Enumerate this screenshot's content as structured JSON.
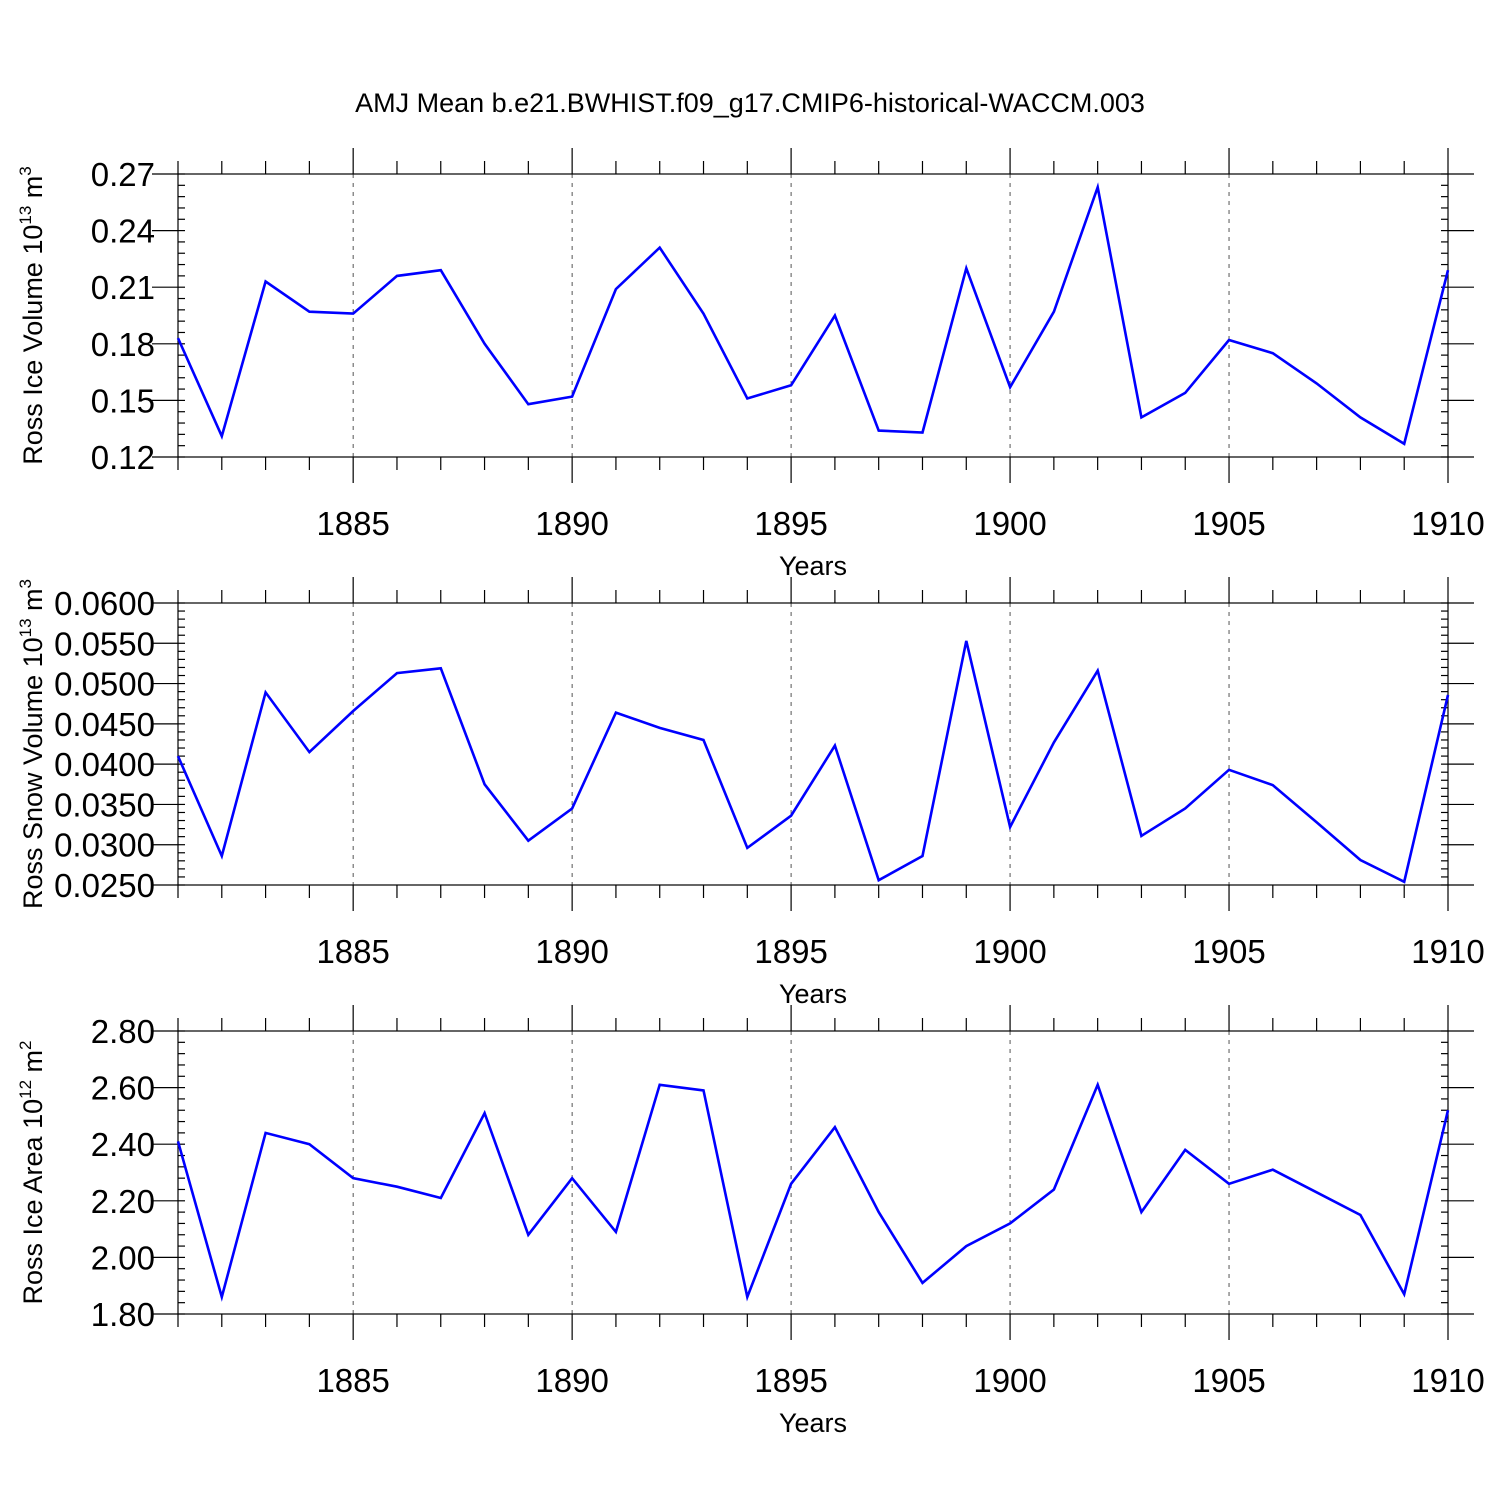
{
  "title": "AMJ Mean b.e21.BWHIST.f09_g17.CMIP6-historical-WACCM.003",
  "colors": {
    "line": "#0000ff",
    "axis": "#000000",
    "grid": "#555555"
  },
  "chart_data": [
    {
      "type": "line",
      "xlabel": "Years",
      "ylabel": "Ross Ice Volume 10",
      "ylabel_exp": "13",
      "ylabel_unit": "m",
      "ylabel_unit_exp": "3",
      "xlim": [
        1881,
        1910
      ],
      "ylim": [
        0.12,
        0.27
      ],
      "x_ticks": [
        1885,
        1890,
        1895,
        1900,
        1905,
        1910
      ],
      "y_ticks": [
        0.12,
        0.15,
        0.18,
        0.21,
        0.24,
        0.27
      ],
      "y_tick_labels": [
        "0.12",
        "0.15",
        "0.18",
        "0.21",
        "0.24",
        "0.27"
      ],
      "grid": "vertical dashed at major x ticks",
      "x": [
        1881,
        1882,
        1883,
        1884,
        1885,
        1886,
        1887,
        1888,
        1889,
        1890,
        1891,
        1892,
        1893,
        1894,
        1895,
        1896,
        1897,
        1898,
        1899,
        1900,
        1901,
        1902,
        1903,
        1904,
        1905,
        1906,
        1907,
        1908,
        1909,
        1910
      ],
      "values": [
        0.183,
        0.131,
        0.213,
        0.197,
        0.196,
        0.216,
        0.219,
        0.18,
        0.148,
        0.152,
        0.209,
        0.231,
        0.196,
        0.151,
        0.158,
        0.195,
        0.134,
        0.133,
        0.22,
        0.157,
        0.197,
        0.263,
        0.141,
        0.154,
        0.182,
        0.175,
        0.159,
        0.141,
        0.127,
        0.219
      ]
    },
    {
      "type": "line",
      "xlabel": "Years",
      "ylabel": "Ross Snow Volume 10",
      "ylabel_exp": "13",
      "ylabel_unit": "m",
      "ylabel_unit_exp": "3",
      "xlim": [
        1881,
        1910
      ],
      "ylim": [
        0.025,
        0.06
      ],
      "x_ticks": [
        1885,
        1890,
        1895,
        1900,
        1905,
        1910
      ],
      "y_ticks": [
        0.025,
        0.03,
        0.035,
        0.04,
        0.045,
        0.05,
        0.055,
        0.06
      ],
      "y_tick_labels": [
        "0.0250",
        "0.0300",
        "0.0350",
        "0.0400",
        "0.0450",
        "0.0500",
        "0.0550",
        "0.0600"
      ],
      "grid": "vertical dashed at major x ticks",
      "x": [
        1881,
        1882,
        1883,
        1884,
        1885,
        1886,
        1887,
        1888,
        1889,
        1890,
        1891,
        1892,
        1893,
        1894,
        1895,
        1896,
        1897,
        1898,
        1899,
        1900,
        1901,
        1902,
        1903,
        1904,
        1905,
        1906,
        1907,
        1908,
        1909,
        1910
      ],
      "values": [
        0.041,
        0.0286,
        0.0489,
        0.0415,
        0.0466,
        0.0513,
        0.0519,
        0.0375,
        0.0305,
        0.0345,
        0.0464,
        0.0445,
        0.043,
        0.0296,
        0.0336,
        0.0423,
        0.0256,
        0.0286,
        0.0553,
        0.0322,
        0.0427,
        0.0516,
        0.0311,
        0.0345,
        0.0393,
        0.0374,
        0.0328,
        0.0281,
        0.0254,
        0.0486
      ]
    },
    {
      "type": "line",
      "xlabel": "Years",
      "ylabel": "Ross Ice Area 10",
      "ylabel_exp": "12",
      "ylabel_unit": "m",
      "ylabel_unit_exp": "2",
      "xlim": [
        1881,
        1910
      ],
      "ylim": [
        1.8,
        2.8
      ],
      "x_ticks": [
        1885,
        1890,
        1895,
        1900,
        1905,
        1910
      ],
      "y_ticks": [
        1.8,
        2.0,
        2.2,
        2.4,
        2.6,
        2.8
      ],
      "y_tick_labels": [
        "1.80",
        "2.00",
        "2.20",
        "2.40",
        "2.60",
        "2.80"
      ],
      "grid": "vertical dashed at major x ticks",
      "x": [
        1881,
        1882,
        1883,
        1884,
        1885,
        1886,
        1887,
        1888,
        1889,
        1890,
        1891,
        1892,
        1893,
        1894,
        1895,
        1896,
        1897,
        1898,
        1899,
        1900,
        1901,
        1902,
        1903,
        1904,
        1905,
        1906,
        1907,
        1908,
        1909,
        1910
      ],
      "values": [
        2.41,
        1.86,
        2.44,
        2.4,
        2.28,
        2.25,
        2.21,
        2.51,
        2.08,
        2.28,
        2.09,
        2.61,
        2.59,
        1.86,
        2.26,
        2.46,
        2.16,
        1.91,
        2.04,
        2.12,
        2.24,
        2.61,
        2.16,
        2.38,
        2.26,
        2.31,
        2.23,
        2.15,
        1.87,
        2.52
      ]
    }
  ]
}
